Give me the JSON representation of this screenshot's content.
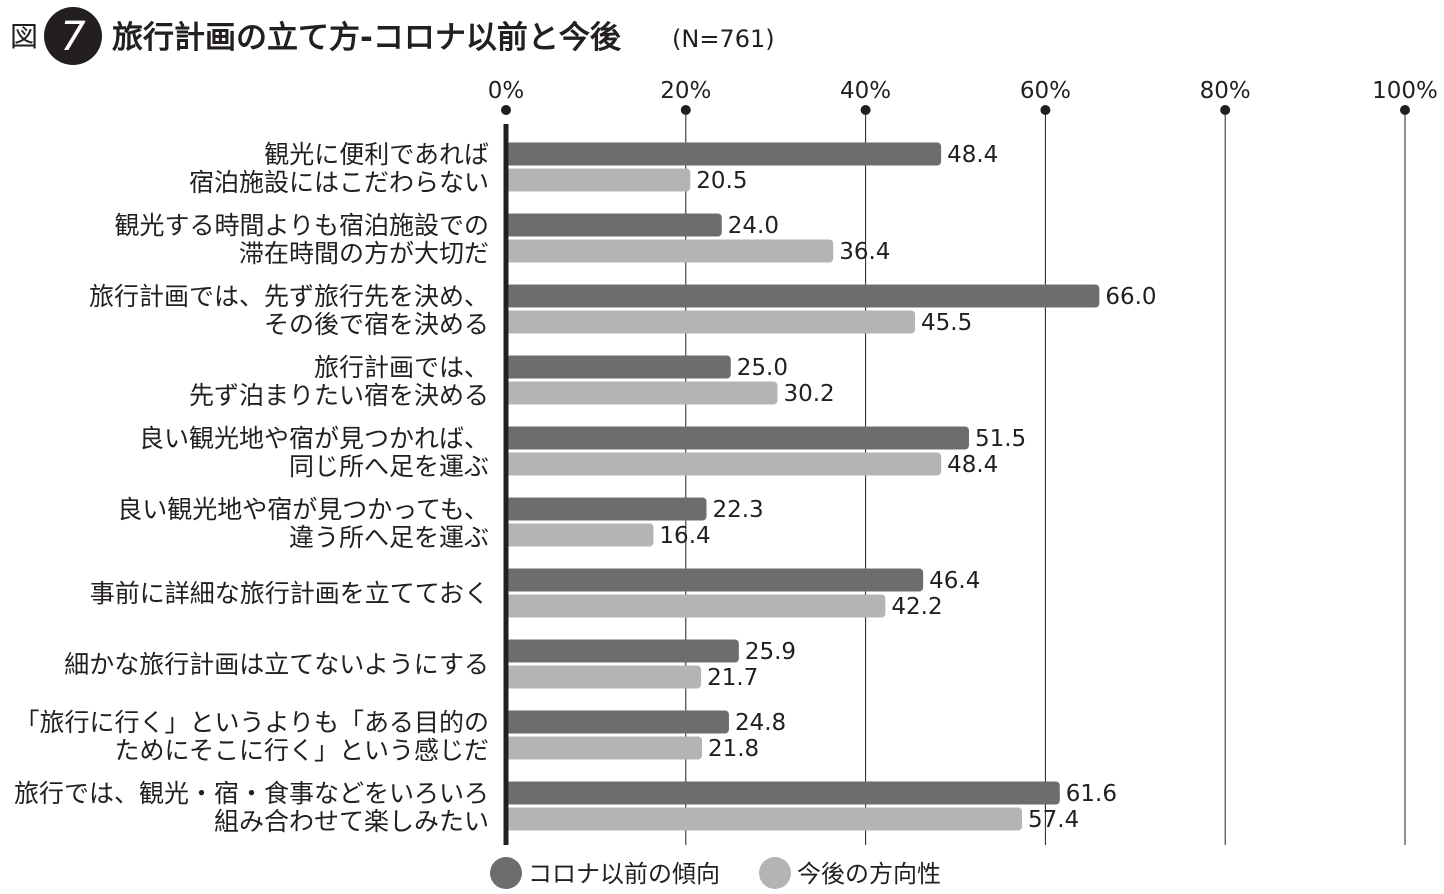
{
  "figure_label": "図",
  "figure_number": "7",
  "title": "旅行計画の立て方-コロナ以前と今後",
  "subtitle": "(N=761)",
  "colors": {
    "before": "#6d6d6f",
    "after": "#b4b4b6",
    "axis": "#231f20",
    "grid": "#231f20"
  },
  "chart_data": {
    "type": "bar",
    "orientation": "horizontal",
    "title": "旅行計画の立て方-コロナ以前と今後",
    "x_ticks": [
      "0%",
      "20%",
      "40%",
      "60%",
      "80%",
      "100%"
    ],
    "xlim": [
      0,
      100
    ],
    "grid": true,
    "legend_position": "bottom",
    "categories": [
      [
        "観光に便利であれば",
        "宿泊施設にはこだわらない"
      ],
      [
        "観光する時間よりも宿泊施設での",
        "滞在時間の方が大切だ"
      ],
      [
        "旅行計画では、先ず旅行先を決め、",
        "その後で宿を決める"
      ],
      [
        "旅行計画では、",
        "先ず泊まりたい宿を決める"
      ],
      [
        "良い観光地や宿が見つかれば、",
        "同じ所へ足を運ぶ"
      ],
      [
        "良い観光地や宿が見つかっても、",
        "違う所へ足を運ぶ"
      ],
      [
        "事前に詳細な旅行計画を立てておく"
      ],
      [
        "細かな旅行計画は立てないようにする"
      ],
      [
        "「旅行に行く」というよりも「ある目的の",
        "ためにそこに行く」という感じだ"
      ],
      [
        "旅行では、観光・宿・食事などをいろいろ",
        "組み合わせて楽しみたい"
      ]
    ],
    "series": [
      {
        "name": "コロナ以前の傾向",
        "values": [
          48.4,
          24.0,
          66.0,
          25.0,
          51.5,
          22.3,
          46.4,
          25.9,
          24.8,
          61.6
        ],
        "labels": [
          "48.4",
          "24.0",
          "66.0",
          "25.0",
          "51.5",
          "22.3",
          "46.4",
          "25.9",
          "24.8",
          "61.6"
        ]
      },
      {
        "name": "今後の方向性",
        "values": [
          20.5,
          36.4,
          45.5,
          30.2,
          48.4,
          16.4,
          42.2,
          21.7,
          21.8,
          57.4
        ],
        "labels": [
          "20.5",
          "36.4",
          "45.5",
          "30.2",
          "48.4",
          "16.4",
          "42.2",
          "21.7",
          "21.8",
          "57.4"
        ]
      }
    ]
  }
}
